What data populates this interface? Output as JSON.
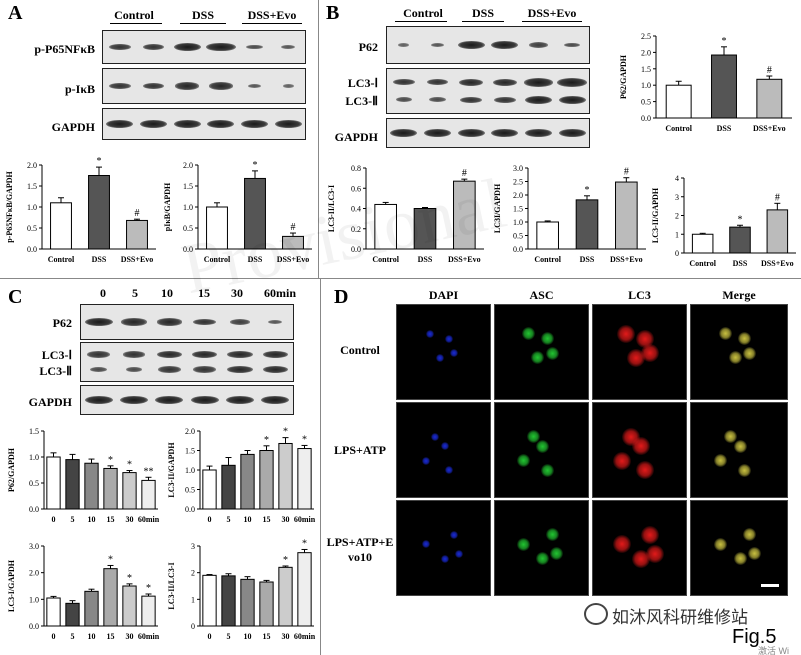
{
  "figure": {
    "label": "Fig.5",
    "watermark_text": "如沐风科研维修站",
    "corner_text": "激活 Wi",
    "background_text": "Provisional"
  },
  "panelA": {
    "label": "A",
    "groups": [
      "Control",
      "DSS",
      "DSS+Evo"
    ],
    "blots": [
      "p-P65NFκB",
      "p-IκB",
      "GAPDH"
    ],
    "chart1": {
      "ylabel": "p-P65NFκB/GAPDH",
      "ticks": [
        "0.0",
        "0.5",
        "1.0",
        "1.5",
        "2.0"
      ],
      "categories": [
        "Control",
        "DSS",
        "DSS+Evo"
      ],
      "sig": [
        "",
        "*",
        "#"
      ]
    },
    "chart2": {
      "ylabel": "pIκB/GAPDH",
      "ticks": [
        "0.0",
        "0.5",
        "1.0",
        "1.5",
        "2.0"
      ],
      "categories": [
        "Control",
        "DSS",
        "DSS+Evo"
      ],
      "sig": [
        "",
        "*",
        "#"
      ]
    }
  },
  "panelB": {
    "label": "B",
    "groups": [
      "Control",
      "DSS",
      "DSS+Evo"
    ],
    "blots": [
      "P62",
      "LC3-Ⅰ",
      "LC3-Ⅱ",
      "GAPDH"
    ],
    "chart1": {
      "ylabel": "P62/GAPDH",
      "ticks": [
        "0.0",
        "0.5",
        "1.0",
        "1.5",
        "2.0",
        "2.5"
      ],
      "categories": [
        "Control",
        "DSS",
        "DSS+Evo"
      ],
      "sig": [
        "",
        "*",
        "#"
      ]
    },
    "chart2": {
      "ylabel": "LC3-II/LC3-I",
      "ticks": [
        "0.0",
        "0.2",
        "0.4",
        "0.6",
        "0.8"
      ],
      "categories": [
        "Control",
        "DSS",
        "DSS+Evo"
      ],
      "sig": [
        "",
        "",
        "#"
      ]
    },
    "chart3": {
      "ylabel": "LC3I/GAPDH",
      "ticks": [
        "0.0",
        "0.5",
        "1.0",
        "1.5",
        "2.0",
        "2.5",
        "3.0"
      ],
      "categories": [
        "Control",
        "DSS",
        "DSS+Evo"
      ],
      "sig": [
        "",
        "*",
        "#"
      ]
    },
    "chart4": {
      "ylabel": "LC3-II/GAPDH",
      "ticks": [
        "0",
        "1",
        "2",
        "3",
        "4"
      ],
      "categories": [
        "Control",
        "DSS",
        "DSS+Evo"
      ],
      "sig": [
        "",
        "*",
        "#"
      ]
    }
  },
  "panelC": {
    "label": "C",
    "timepoints": [
      "0",
      "5",
      "10",
      "15",
      "30",
      "60min"
    ],
    "blots": [
      "P62",
      "LC3-Ⅰ",
      "LC3-Ⅱ",
      "GAPDH"
    ],
    "chart1": {
      "ylabel": "P62/GAPDH",
      "ticks": [
        "0.0",
        "0.5",
        "1.0",
        "1.5"
      ],
      "categories": [
        "0",
        "5",
        "10",
        "15",
        "30",
        "60min"
      ],
      "sig": [
        "",
        "",
        "",
        "*",
        "*",
        "**"
      ]
    },
    "chart2": {
      "ylabel": "LC3-II/GAPDH",
      "ticks": [
        "0.0",
        "0.5",
        "1.0",
        "1.5",
        "2.0"
      ],
      "categories": [
        "0",
        "5",
        "10",
        "15",
        "30",
        "60min"
      ],
      "sig": [
        "",
        "",
        "",
        "*",
        "*",
        "*"
      ]
    },
    "chart3": {
      "ylabel": "LC3-I/GAPDH",
      "ticks": [
        "0.0",
        "1.0",
        "2.0",
        "3.0"
      ],
      "categories": [
        "0",
        "5",
        "10",
        "15",
        "30",
        "60min"
      ],
      "sig": [
        "",
        "",
        "",
        "*",
        "*",
        "*"
      ]
    },
    "chart4": {
      "ylabel": "LC3-II/LC3-I",
      "ticks": [
        "0",
        "1",
        "2",
        "3"
      ],
      "categories": [
        "0",
        "5",
        "10",
        "15",
        "30",
        "60min"
      ],
      "sig": [
        "",
        "",
        "",
        "",
        "*",
        "*"
      ]
    }
  },
  "panelD": {
    "label": "D",
    "columns": [
      "DAPI",
      "ASC",
      "LC3",
      "Merge"
    ],
    "rows": [
      "Control",
      "LPS+ATP",
      "LPS+ATP+Evo10"
    ],
    "colors": {
      "DAPI": "#1a2bd8",
      "ASC": "#22c531",
      "LC3": "#e21a1a",
      "Merge": "#c8c040"
    }
  },
  "chart_data": [
    {
      "type": "bar",
      "id": "A1",
      "categories": [
        "Control",
        "DSS",
        "DSS+Evo"
      ],
      "values": [
        1.1,
        1.75,
        0.68
      ],
      "errors": [
        0.12,
        0.2,
        0.03
      ],
      "ylim": [
        0,
        2.0
      ],
      "ylabel": "p-P65NFκB/GAPDH"
    },
    {
      "type": "bar",
      "id": "A2",
      "categories": [
        "Control",
        "DSS",
        "DSS+Evo"
      ],
      "values": [
        1.0,
        1.68,
        0.3
      ],
      "errors": [
        0.1,
        0.18,
        0.08
      ],
      "ylim": [
        0,
        2.0
      ],
      "ylabel": "pIκB/GAPDH"
    },
    {
      "type": "bar",
      "id": "B1",
      "categories": [
        "Control",
        "DSS",
        "DSS+Evo"
      ],
      "values": [
        1.0,
        1.92,
        1.18
      ],
      "errors": [
        0.12,
        0.25,
        0.1
      ],
      "ylim": [
        0,
        2.5
      ],
      "ylabel": "P62/GAPDH"
    },
    {
      "type": "bar",
      "id": "B2",
      "categories": [
        "Control",
        "DSS",
        "DSS+Evo"
      ],
      "values": [
        0.44,
        0.4,
        0.67
      ],
      "errors": [
        0.02,
        0.01,
        0.02
      ],
      "ylim": [
        0,
        0.8
      ],
      "ylabel": "LC3-II/LC3-I"
    },
    {
      "type": "bar",
      "id": "B3",
      "categories": [
        "Control",
        "DSS",
        "DSS+Evo"
      ],
      "values": [
        1.0,
        1.82,
        2.48
      ],
      "errors": [
        0.04,
        0.15,
        0.16
      ],
      "ylim": [
        0,
        3.0
      ],
      "ylabel": "LC3I/GAPDH"
    },
    {
      "type": "bar",
      "id": "B4",
      "categories": [
        "Control",
        "DSS",
        "DSS+Evo"
      ],
      "values": [
        1.0,
        1.38,
        2.3
      ],
      "errors": [
        0.05,
        0.1,
        0.35
      ],
      "ylim": [
        0,
        4
      ],
      "ylabel": "LC3-II/GAPDH"
    },
    {
      "type": "bar",
      "id": "C1",
      "categories": [
        "0",
        "5",
        "10",
        "15",
        "30",
        "60min"
      ],
      "values": [
        1.0,
        0.95,
        0.88,
        0.78,
        0.7,
        0.55
      ],
      "errors": [
        0.08,
        0.1,
        0.08,
        0.05,
        0.04,
        0.06
      ],
      "ylim": [
        0,
        1.5
      ],
      "ylabel": "P62/GAPDH"
    },
    {
      "type": "bar",
      "id": "C2",
      "categories": [
        "0",
        "5",
        "10",
        "15",
        "30",
        "60min"
      ],
      "values": [
        1.0,
        1.12,
        1.4,
        1.5,
        1.68,
        1.55
      ],
      "errors": [
        0.1,
        0.2,
        0.1,
        0.12,
        0.15,
        0.08
      ],
      "ylim": [
        0,
        2.0
      ],
      "ylabel": "LC3-II/GAPDH"
    },
    {
      "type": "bar",
      "id": "C3",
      "categories": [
        "0",
        "5",
        "10",
        "15",
        "30",
        "60min"
      ],
      "values": [
        1.05,
        0.85,
        1.3,
        2.15,
        1.5,
        1.12
      ],
      "errors": [
        0.06,
        0.1,
        0.08,
        0.12,
        0.08,
        0.08
      ],
      "ylim": [
        0,
        3.0
      ],
      "ylabel": "LC3-I/GAPDH"
    },
    {
      "type": "bar",
      "id": "C4",
      "categories": [
        "0",
        "5",
        "10",
        "15",
        "30",
        "60min"
      ],
      "values": [
        1.9,
        1.88,
        1.75,
        1.65,
        2.2,
        2.75
      ],
      "errors": [
        0.03,
        0.08,
        0.1,
        0.06,
        0.05,
        0.12
      ],
      "ylim": [
        0,
        3
      ],
      "ylabel": "LC3-II/LC3-I"
    }
  ]
}
